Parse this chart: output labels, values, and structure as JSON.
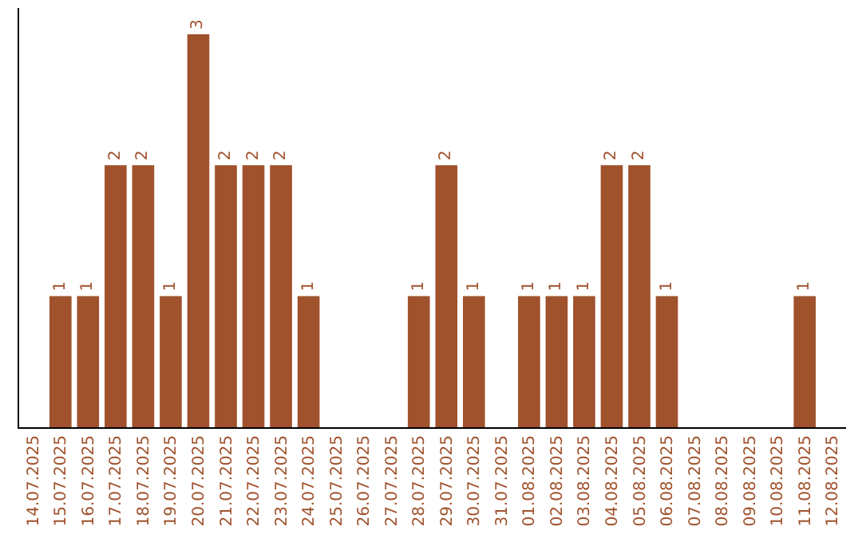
{
  "chart_data": {
    "type": "bar",
    "categories": [
      "14.07.2025",
      "15.07.2025",
      "16.07.2025",
      "17.07.2025",
      "18.07.2025",
      "19.07.2025",
      "20.07.2025",
      "21.07.2025",
      "22.07.2025",
      "23.07.2025",
      "24.07.2025",
      "25.07.2025",
      "26.07.2025",
      "27.07.2025",
      "28.07.2025",
      "29.07.2025",
      "30.07.2025",
      "31.07.2025",
      "01.08.2025",
      "02.08.2025",
      "03.08.2025",
      "04.08.2025",
      "05.08.2025",
      "06.08.2025",
      "07.08.2025",
      "08.08.2025",
      "09.08.2025",
      "10.08.2025",
      "11.08.2025",
      "12.08.2025"
    ],
    "values": [
      0,
      1,
      1,
      2,
      2,
      1,
      3,
      2,
      2,
      2,
      1,
      0,
      0,
      0,
      1,
      2,
      1,
      0,
      1,
      1,
      1,
      2,
      2,
      1,
      0,
      0,
      0,
      0,
      1,
      0
    ],
    "value_labels": [
      null,
      "1",
      "1",
      "2",
      "2",
      "1",
      "3",
      "2",
      "2",
      "2",
      "1",
      null,
      null,
      null,
      "1",
      "2",
      "1",
      null,
      "1",
      "1",
      "1",
      "2",
      "2",
      "1",
      null,
      null,
      null,
      null,
      "1",
      null
    ],
    "color": "#a0522d",
    "ylim": [
      0,
      3.2
    ],
    "tick_labels": "x",
    "grid": false,
    "legend": false
  }
}
